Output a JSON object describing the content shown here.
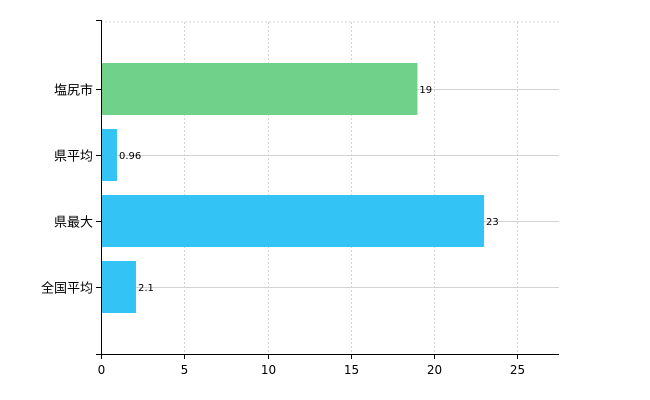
{
  "chart_data": {
    "type": "bar",
    "orientation": "horizontal",
    "categories": [
      "塩尻市",
      "県平均",
      "県最大",
      "全国平均"
    ],
    "values": [
      19,
      0.96,
      23,
      2.1
    ],
    "data_labels": [
      "19",
      "0.96",
      "23",
      "2.1"
    ],
    "colors": [
      "#6fd18a",
      "#33c4f5",
      "#33c4f5",
      "#33c4f5"
    ],
    "xlim": [
      0,
      27.5
    ],
    "xticks": [
      0,
      5,
      10,
      15,
      20,
      25
    ],
    "grid": true,
    "gridline_color": "#d3d3d3",
    "title": "",
    "xlabel": "",
    "ylabel": ""
  }
}
